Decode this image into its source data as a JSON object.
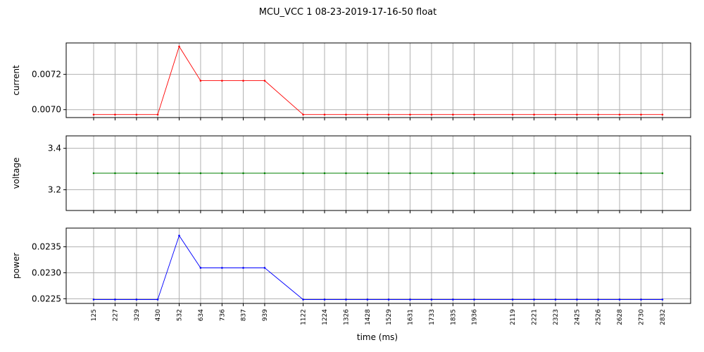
{
  "chart_data": {
    "type": "line",
    "title": "MCU_VCC   1   08-23-2019-17-16-50   float",
    "xlabel": "time (ms)",
    "x": [
      125,
      227,
      329,
      430,
      532,
      634,
      736,
      837,
      939,
      1122,
      1224,
      1326,
      1428,
      1529,
      1631,
      1733,
      1835,
      1936,
      2119,
      2221,
      2323,
      2425,
      2526,
      2628,
      2730,
      2832
    ],
    "x_tick_labels": [
      "125",
      "227",
      "329",
      "430",
      "532",
      "634",
      "736",
      "837",
      "939",
      "1122",
      "1224",
      "1326",
      "1428",
      "1529",
      "1631",
      "1733",
      "1835",
      "1936",
      "2119",
      "2221",
      "2323",
      "2425",
      "2526",
      "2628",
      "2730",
      "2832"
    ],
    "grid": true,
    "subplots": [
      {
        "ylabel": "current",
        "color": "#ff0000",
        "ylim": [
          0.006955,
          0.007378
        ],
        "yticks": [
          0.007,
          0.0072
        ],
        "ytick_labels": [
          "0.0070",
          "0.0072"
        ],
        "values": [
          0.006972,
          0.006972,
          0.006972,
          0.006972,
          0.007358,
          0.007164,
          0.007164,
          0.007164,
          0.007164,
          0.006972,
          0.006972,
          0.006972,
          0.006972,
          0.006972,
          0.006972,
          0.006972,
          0.006972,
          0.006972,
          0.006972,
          0.006972,
          0.006972,
          0.006972,
          0.006972,
          0.006972,
          0.006972,
          0.006972
        ]
      },
      {
        "ylabel": "voltage",
        "color": "#008000",
        "ylim": [
          3.1,
          3.46
        ],
        "yticks": [
          3.2,
          3.4
        ],
        "ytick_labels": [
          "3.2",
          "3.4"
        ],
        "values": [
          3.28,
          3.28,
          3.28,
          3.28,
          3.28,
          3.28,
          3.28,
          3.28,
          3.28,
          3.28,
          3.28,
          3.28,
          3.28,
          3.28,
          3.28,
          3.28,
          3.28,
          3.28,
          3.28,
          3.28,
          3.28,
          3.28,
          3.28,
          3.28,
          3.28,
          3.28
        ]
      },
      {
        "ylabel": "power",
        "color": "#0000ff",
        "ylim": [
          0.02241,
          0.02386
        ],
        "yticks": [
          0.0225,
          0.023,
          0.0235
        ],
        "ytick_labels": [
          "0.0225",
          "0.0230",
          "0.0235"
        ],
        "values": [
          0.022485,
          0.022485,
          0.022485,
          0.022485,
          0.023715,
          0.023095,
          0.023095,
          0.023095,
          0.023095,
          0.022485,
          0.022485,
          0.022485,
          0.022485,
          0.022485,
          0.022485,
          0.022485,
          0.022485,
          0.022485,
          0.022485,
          0.022485,
          0.022485,
          0.022485,
          0.022485,
          0.022485,
          0.022485,
          0.022485
        ]
      }
    ]
  }
}
